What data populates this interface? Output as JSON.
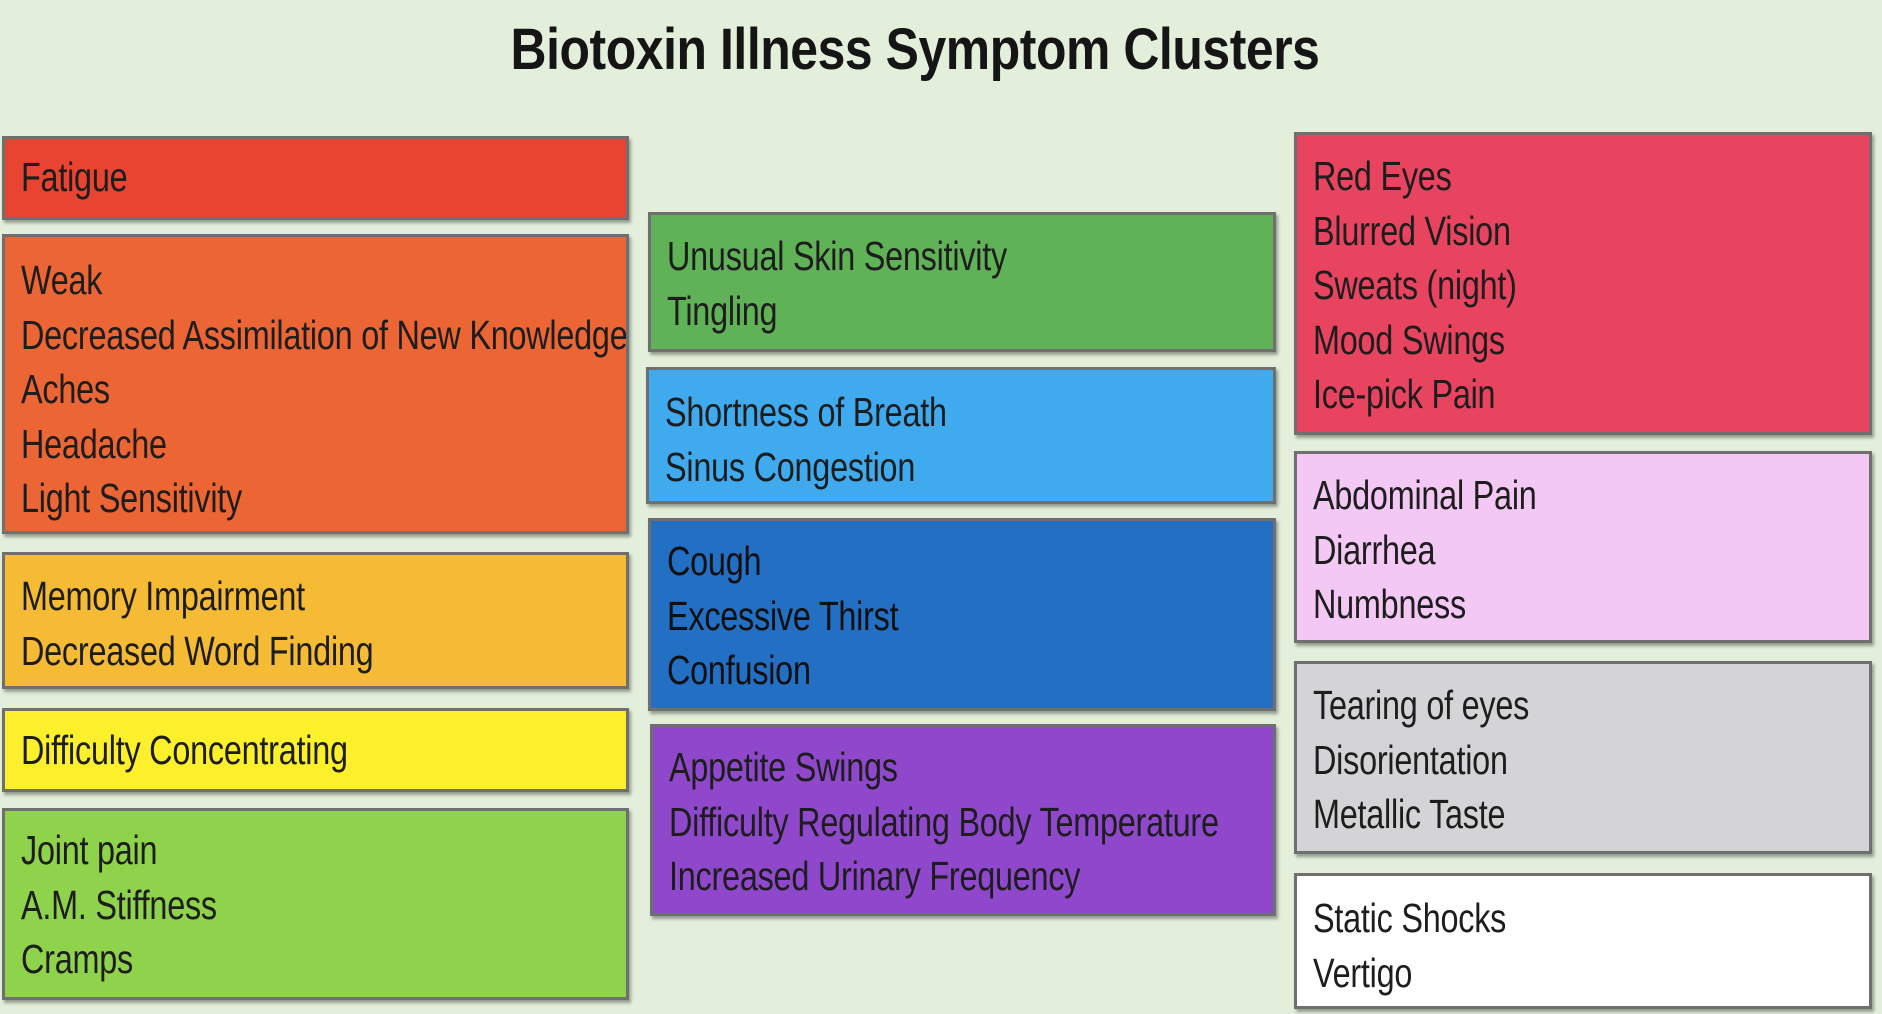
{
  "title": "Biotoxin Illness Symptom Clusters",
  "clusters": [
    {
      "color": "#e84431",
      "items": [
        "Fatigue"
      ]
    },
    {
      "color": "#ec6535",
      "items": [
        "Weak",
        "Decreased Assimilation of New Knowledge",
        "Aches",
        "Headache",
        "Light Sensitivity"
      ]
    },
    {
      "color": "#f6bb35",
      "items": [
        "Memory Impairment",
        "Decreased Word Finding"
      ]
    },
    {
      "color": "#fcf02d",
      "items": [
        "Difficulty Concentrating"
      ]
    },
    {
      "color": "#8fd24b",
      "items": [
        "Joint pain",
        "A.M. Stiffness",
        "Cramps"
      ]
    },
    {
      "color": "#5fb356",
      "items": [
        "Unusual Skin Sensitivity",
        "Tingling"
      ]
    },
    {
      "color": "#40aaef",
      "items": [
        "Shortness of Breath",
        "Sinus Congestion"
      ]
    },
    {
      "color": "#226fc4",
      "items": [
        "Cough",
        "Excessive Thirst",
        "Confusion"
      ]
    },
    {
      "color": "#8f48cc",
      "items": [
        "Appetite Swings",
        "Difficulty Regulating Body Temperature",
        "Increased Urinary Frequency"
      ]
    },
    {
      "color": "#e84460",
      "items": [
        "Red Eyes",
        "Blurred Vision",
        "Sweats (night)",
        "Mood Swings",
        "Ice-pick Pain"
      ]
    },
    {
      "color": "#f4c8f4",
      "items": [
        "Abdominal Pain",
        "Diarrhea",
        "Numbness"
      ]
    },
    {
      "color": "#d4d4d6",
      "items": [
        "Tearing of eyes",
        "Disorientation",
        "Metallic Taste"
      ]
    },
    {
      "color": "#ffffff",
      "items": [
        "Static Shocks",
        "Vertigo"
      ]
    }
  ]
}
